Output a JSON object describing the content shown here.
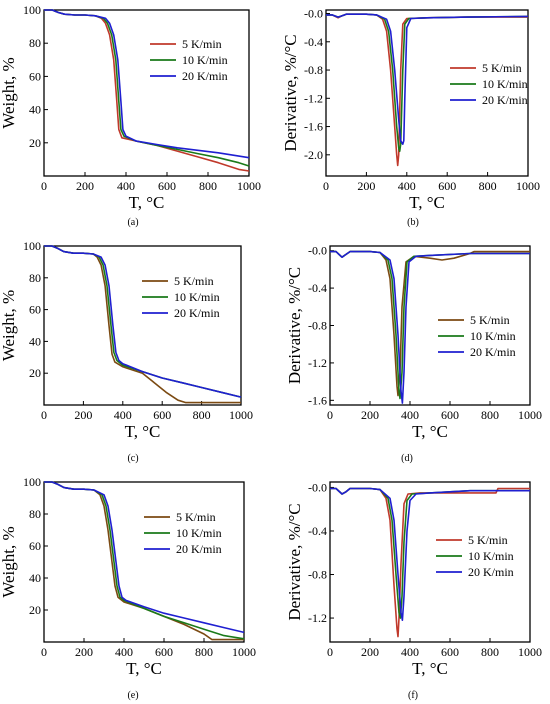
{
  "colors": {
    "5K": "#c0392b",
    "10K": "#1a7a1a",
    "20K": "#1f1fd1",
    "5K_brown": "#7b4a12"
  },
  "chart_data": [
    {
      "id": "a",
      "type": "line",
      "caption": "(a)",
      "xlabel": "T, °C",
      "ylabel": "Weight, %",
      "xlim": [
        0,
        1000
      ],
      "ylim": [
        0,
        100
      ],
      "xticks": [
        0,
        200,
        400,
        600,
        800,
        1000
      ],
      "yticks": [
        20,
        40,
        60,
        80,
        100
      ],
      "legend_position": "top-right",
      "series": [
        {
          "name": "5 K/min",
          "color": "#c0392b",
          "x": [
            0,
            40,
            70,
            100,
            150,
            200,
            250,
            280,
            300,
            320,
            340,
            355,
            365,
            380,
            450,
            550,
            650,
            750,
            850,
            950,
            1000
          ],
          "y": [
            100,
            100,
            98.5,
            97.5,
            97,
            97,
            96.5,
            95,
            92,
            85,
            70,
            45,
            28,
            23,
            21,
            18.5,
            15,
            11.5,
            8,
            4,
            3
          ]
        },
        {
          "name": "10 K/min",
          "color": "#1a7a1a",
          "x": [
            0,
            40,
            70,
            100,
            150,
            200,
            250,
            290,
            310,
            330,
            350,
            365,
            375,
            390,
            450,
            550,
            650,
            750,
            850,
            950,
            1000
          ],
          "y": [
            100,
            100,
            98.5,
            97.5,
            97,
            97,
            96.5,
            95,
            92,
            85,
            70,
            45,
            28,
            24,
            21,
            18.5,
            16,
            13.5,
            11,
            8,
            6
          ]
        },
        {
          "name": "20 K/min",
          "color": "#1f1fd1",
          "x": [
            0,
            40,
            70,
            100,
            150,
            200,
            250,
            300,
            320,
            340,
            360,
            375,
            385,
            400,
            450,
            550,
            650,
            750,
            850,
            950,
            1000
          ],
          "y": [
            100,
            100,
            98.5,
            97.5,
            97,
            97,
            96.5,
            95,
            92,
            85,
            70,
            45,
            28,
            24,
            21,
            19,
            17,
            15.5,
            14,
            12,
            11
          ]
        }
      ]
    },
    {
      "id": "b",
      "type": "line",
      "caption": "(b)",
      "xlabel": "T, °C",
      "ylabel": "Derivative, %/°C",
      "xlim": [
        0,
        1000
      ],
      "ylim": [
        -2.3,
        0.05
      ],
      "xticks": [
        0,
        200,
        400,
        600,
        800,
        1000
      ],
      "yticks": [
        -0.0,
        -0.4,
        -0.8,
        -1.2,
        -1.6,
        -2.0
      ],
      "ytick_labels": [
        "-0.0",
        "-0.4",
        "-0.8",
        "-1.2",
        "-1.6",
        "-2.0"
      ],
      "legend_position": "center-right",
      "series": [
        {
          "name": "5 K/min",
          "color": "#c0392b",
          "x": [
            0,
            30,
            60,
            80,
            100,
            150,
            200,
            250,
            280,
            300,
            320,
            340,
            350,
            355,
            360,
            370,
            380,
            400,
            500,
            700,
            1000
          ],
          "y": [
            -0.02,
            -0.02,
            -0.06,
            -0.03,
            -0.01,
            -0.01,
            -0.01,
            -0.02,
            -0.08,
            -0.25,
            -0.8,
            -1.6,
            -2.0,
            -2.15,
            -2.0,
            -0.8,
            -0.15,
            -0.07,
            -0.06,
            -0.05,
            -0.05
          ]
        },
        {
          "name": "10 K/min",
          "color": "#1a7a1a",
          "x": [
            0,
            30,
            60,
            80,
            100,
            150,
            200,
            250,
            290,
            310,
            330,
            350,
            360,
            365,
            370,
            380,
            390,
            410,
            500,
            700,
            1000
          ],
          "y": [
            -0.02,
            -0.02,
            -0.05,
            -0.03,
            -0.01,
            -0.01,
            -0.01,
            -0.02,
            -0.08,
            -0.25,
            -0.8,
            -1.6,
            -1.9,
            -1.95,
            -1.85,
            -0.8,
            -0.15,
            -0.07,
            -0.06,
            -0.05,
            -0.04
          ]
        },
        {
          "name": "20 K/min",
          "color": "#1f1fd1",
          "x": [
            0,
            30,
            60,
            80,
            100,
            150,
            200,
            250,
            300,
            320,
            340,
            360,
            370,
            380,
            385,
            390,
            400,
            420,
            500,
            700,
            1000
          ],
          "y": [
            -0.02,
            -0.02,
            -0.05,
            -0.03,
            -0.01,
            -0.01,
            -0.01,
            -0.02,
            -0.08,
            -0.25,
            -0.8,
            -1.5,
            -1.8,
            -1.85,
            -1.8,
            -1.2,
            -0.2,
            -0.07,
            -0.06,
            -0.05,
            -0.04
          ]
        }
      ]
    },
    {
      "id": "c",
      "type": "line",
      "caption": "(c)",
      "xlabel": "T, °C",
      "ylabel": "Weight, %",
      "xlim": [
        0,
        1000
      ],
      "ylim": [
        0,
        100
      ],
      "xticks": [
        0,
        200,
        400,
        600,
        800,
        1000
      ],
      "yticks": [
        20,
        40,
        60,
        80,
        100
      ],
      "legend_position": "top-right",
      "series": [
        {
          "name": "5 K/min",
          "color": "#7b4a12",
          "x": [
            0,
            40,
            70,
            100,
            150,
            200,
            250,
            270,
            290,
            310,
            330,
            345,
            360,
            400,
            500,
            560,
            620,
            680,
            720,
            800,
            1000
          ],
          "y": [
            100,
            100,
            98.5,
            96.5,
            95.5,
            95.5,
            95,
            93,
            88,
            75,
            50,
            32,
            27,
            24,
            20,
            14,
            8,
            3,
            1.5,
            1.5,
            1.5
          ]
        },
        {
          "name": "10 K/min",
          "color": "#1a7a1a",
          "x": [
            0,
            40,
            70,
            100,
            150,
            200,
            250,
            280,
            300,
            320,
            340,
            355,
            370,
            400,
            500,
            600,
            700,
            800,
            900,
            1000
          ],
          "y": [
            100,
            100,
            98.5,
            96.5,
            95.5,
            95.5,
            95,
            93,
            88,
            75,
            50,
            33,
            28,
            25,
            21,
            17,
            14,
            11,
            8,
            5
          ]
        },
        {
          "name": "20 K/min",
          "color": "#1f1fd1",
          "x": [
            0,
            40,
            70,
            100,
            150,
            200,
            250,
            290,
            310,
            330,
            350,
            365,
            380,
            400,
            500,
            600,
            700,
            800,
            900,
            1000
          ],
          "y": [
            100,
            100,
            98.5,
            96.5,
            95.5,
            95.5,
            95,
            93,
            88,
            75,
            50,
            33,
            28,
            26,
            21,
            17,
            14,
            11,
            8,
            5
          ]
        }
      ]
    },
    {
      "id": "d",
      "type": "line",
      "caption": "(d)",
      "xlabel": "T, °C",
      "ylabel": "Derivative, %/°C",
      "xlim": [
        0,
        1000
      ],
      "ylim": [
        -1.65,
        0.05
      ],
      "xticks": [
        0,
        200,
        400,
        600,
        800,
        1000
      ],
      "yticks": [
        -0.0,
        -0.4,
        -0.8,
        -1.2,
        -1.6
      ],
      "ytick_labels": [
        "-0.0",
        "-0.4",
        "-0.8",
        "-1.2",
        "-1.6"
      ],
      "legend_position": "center-right",
      "series": [
        {
          "name": "5 K/min",
          "color": "#7b4a12",
          "x": [
            0,
            30,
            60,
            80,
            100,
            150,
            200,
            250,
            280,
            300,
            320,
            335,
            340,
            350,
            360,
            380,
            420,
            500,
            560,
            620,
            700,
            720,
            800,
            1000
          ],
          "y": [
            -0.01,
            -0.01,
            -0.07,
            -0.04,
            -0.01,
            -0.01,
            -0.01,
            -0.02,
            -0.1,
            -0.3,
            -0.9,
            -1.45,
            -1.55,
            -1.3,
            -0.6,
            -0.12,
            -0.06,
            -0.08,
            -0.1,
            -0.08,
            -0.03,
            -0.01,
            -0.01,
            -0.01
          ]
        },
        {
          "name": "10 K/min",
          "color": "#1a7a1a",
          "x": [
            0,
            30,
            60,
            80,
            100,
            150,
            200,
            250,
            290,
            310,
            330,
            345,
            350,
            360,
            370,
            385,
            420,
            500,
            700,
            1000
          ],
          "y": [
            -0.01,
            -0.01,
            -0.07,
            -0.04,
            -0.01,
            -0.01,
            -0.01,
            -0.02,
            -0.1,
            -0.3,
            -0.9,
            -1.5,
            -1.58,
            -1.3,
            -0.6,
            -0.12,
            -0.06,
            -0.05,
            -0.03,
            -0.03
          ]
        },
        {
          "name": "20 K/min",
          "color": "#1f1fd1",
          "x": [
            0,
            30,
            60,
            80,
            100,
            150,
            200,
            250,
            300,
            320,
            340,
            355,
            362,
            370,
            380,
            395,
            430,
            500,
            700,
            1000
          ],
          "y": [
            -0.01,
            -0.01,
            -0.07,
            -0.04,
            -0.01,
            -0.01,
            -0.01,
            -0.02,
            -0.1,
            -0.3,
            -0.9,
            -1.5,
            -1.63,
            -1.3,
            -0.6,
            -0.12,
            -0.06,
            -0.05,
            -0.03,
            -0.03
          ]
        }
      ]
    },
    {
      "id": "e",
      "type": "line",
      "caption": "(e)",
      "xlabel": "T, °C",
      "ylabel": "Weight, %",
      "xlim": [
        0,
        1000
      ],
      "ylim": [
        0,
        100
      ],
      "xticks": [
        0,
        200,
        400,
        600,
        800,
        1000
      ],
      "yticks": [
        20,
        40,
        60,
        80,
        100
      ],
      "legend_position": "top-right",
      "series": [
        {
          "name": "5 K/min",
          "color": "#7b4a12",
          "x": [
            0,
            40,
            70,
            100,
            150,
            200,
            250,
            280,
            300,
            320,
            340,
            355,
            370,
            400,
            500,
            600,
            700,
            800,
            840,
            900,
            1000
          ],
          "y": [
            100,
            100,
            98.5,
            96.5,
            95.5,
            95.5,
            95,
            92,
            85,
            70,
            50,
            35,
            28,
            25,
            21,
            16,
            11,
            5,
            1.5,
            1.5,
            1.5
          ]
        },
        {
          "name": "10 K/min",
          "color": "#1a7a1a",
          "x": [
            0,
            40,
            70,
            100,
            150,
            200,
            250,
            290,
            310,
            330,
            350,
            365,
            380,
            400,
            500,
            600,
            700,
            800,
            900,
            1000
          ],
          "y": [
            100,
            100,
            98.5,
            96.5,
            95.5,
            95.5,
            95,
            92,
            85,
            70,
            50,
            35,
            28,
            26,
            21,
            16,
            12,
            8,
            4,
            2
          ]
        },
        {
          "name": "20 K/min",
          "color": "#1f1fd1",
          "x": [
            0,
            40,
            70,
            100,
            150,
            200,
            250,
            300,
            320,
            340,
            360,
            375,
            390,
            410,
            500,
            600,
            700,
            800,
            900,
            1000
          ],
          "y": [
            100,
            100,
            98.5,
            96.5,
            95.5,
            95.5,
            95,
            92,
            85,
            70,
            50,
            35,
            28,
            26,
            22,
            18,
            15,
            12,
            9,
            6
          ]
        }
      ]
    },
    {
      "id": "f",
      "type": "line",
      "caption": "(f)",
      "xlabel": "T, °C",
      "ylabel": "Derivative, %/°C",
      "xlim": [
        0,
        1000
      ],
      "ylim": [
        -1.42,
        0.05
      ],
      "xticks": [
        0,
        200,
        400,
        600,
        800,
        1000
      ],
      "yticks": [
        -0.0,
        -0.4,
        -0.8,
        -1.2
      ],
      "ytick_labels": [
        "-0.0",
        "-0.4",
        "-0.8",
        "-1.2"
      ],
      "legend_position": "center-right",
      "series": [
        {
          "name": "5 K/min",
          "color": "#c0392b",
          "x": [
            0,
            30,
            60,
            80,
            100,
            150,
            200,
            250,
            280,
            300,
            320,
            335,
            340,
            345,
            355,
            370,
            390,
            450,
            600,
            690,
            700,
            830,
            840,
            1000
          ],
          "y": [
            -0.01,
            -0.01,
            -0.06,
            -0.04,
            -0.01,
            -0.01,
            -0.01,
            -0.02,
            -0.1,
            -0.3,
            -0.9,
            -1.3,
            -1.37,
            -1.2,
            -0.7,
            -0.15,
            -0.06,
            -0.05,
            -0.05,
            -0.05,
            -0.05,
            -0.05,
            -0.01,
            -0.01
          ]
        },
        {
          "name": "10 K/min",
          "color": "#1a7a1a",
          "x": [
            0,
            30,
            60,
            80,
            100,
            150,
            200,
            250,
            290,
            310,
            330,
            345,
            352,
            360,
            370,
            385,
            410,
            500,
            700,
            1000
          ],
          "y": [
            -0.01,
            -0.01,
            -0.06,
            -0.04,
            -0.01,
            -0.01,
            -0.01,
            -0.02,
            -0.1,
            -0.3,
            -0.8,
            -1.15,
            -1.2,
            -1.0,
            -0.5,
            -0.12,
            -0.06,
            -0.05,
            -0.03,
            -0.03
          ]
        },
        {
          "name": "20 K/min",
          "color": "#1f1fd1",
          "x": [
            0,
            30,
            60,
            80,
            100,
            150,
            200,
            250,
            300,
            320,
            340,
            355,
            362,
            370,
            385,
            400,
            430,
            500,
            700,
            1000
          ],
          "y": [
            -0.01,
            -0.01,
            -0.06,
            -0.04,
            -0.01,
            -0.01,
            -0.01,
            -0.02,
            -0.1,
            -0.3,
            -0.8,
            -1.15,
            -1.22,
            -1.0,
            -0.4,
            -0.12,
            -0.06,
            -0.05,
            -0.03,
            -0.03
          ]
        }
      ]
    }
  ]
}
